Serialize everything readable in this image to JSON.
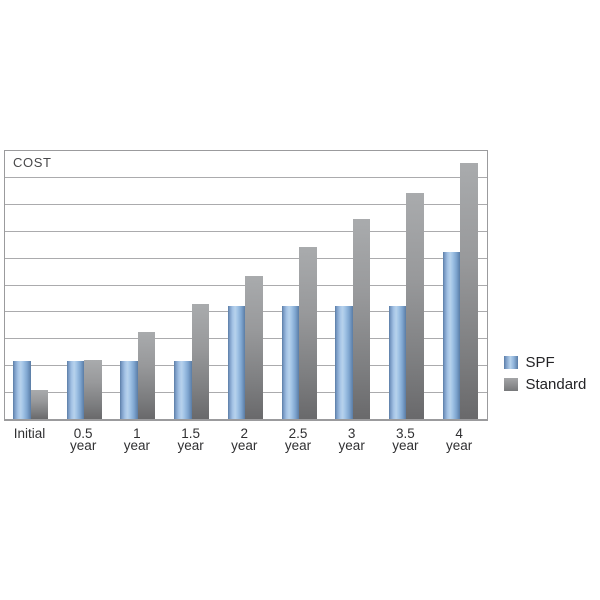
{
  "colors": {
    "spf-highlight": "#b7d2ec",
    "spf-mid": "#8fb3da",
    "spf-shadow": "#5a7ca5",
    "std-top": "#a9abad",
    "std-bottom": "#69696b",
    "grid": "#ababad",
    "frame": "#9b9b9d"
  },
  "chart_data": {
    "type": "bar",
    "title": "COST",
    "categories": [
      "Initial",
      "0.5 year",
      "1 year",
      "1.5 year",
      "2 year",
      "2.5 year",
      "3 year",
      "3.5 year",
      "4 year"
    ],
    "category_lines": [
      [
        "Initial"
      ],
      [
        "0.5",
        "year"
      ],
      [
        "1",
        "year"
      ],
      [
        "1.5",
        "year"
      ],
      [
        "2",
        "year"
      ],
      [
        "2.5",
        "year"
      ],
      [
        "3",
        "year"
      ],
      [
        "3.5",
        "year"
      ],
      [
        "4",
        "year"
      ]
    ],
    "series": [
      {
        "name": "SPF",
        "color": "#8fb3da",
        "values": [
          2.15,
          2.15,
          2.15,
          2.15,
          4.2,
          4.2,
          4.2,
          4.2,
          6.25
        ]
      },
      {
        "name": "Standard",
        "color": "#8c8d8f",
        "values": [
          1.1,
          2.2,
          3.25,
          4.3,
          5.35,
          6.4,
          7.45,
          8.45,
          9.55
        ]
      }
    ],
    "xlabel": "",
    "ylabel": "",
    "ylim": [
      0,
      10
    ],
    "gridline_step": 1,
    "grid": "horizontal lines, no y tick labels",
    "legend_position": "right"
  }
}
